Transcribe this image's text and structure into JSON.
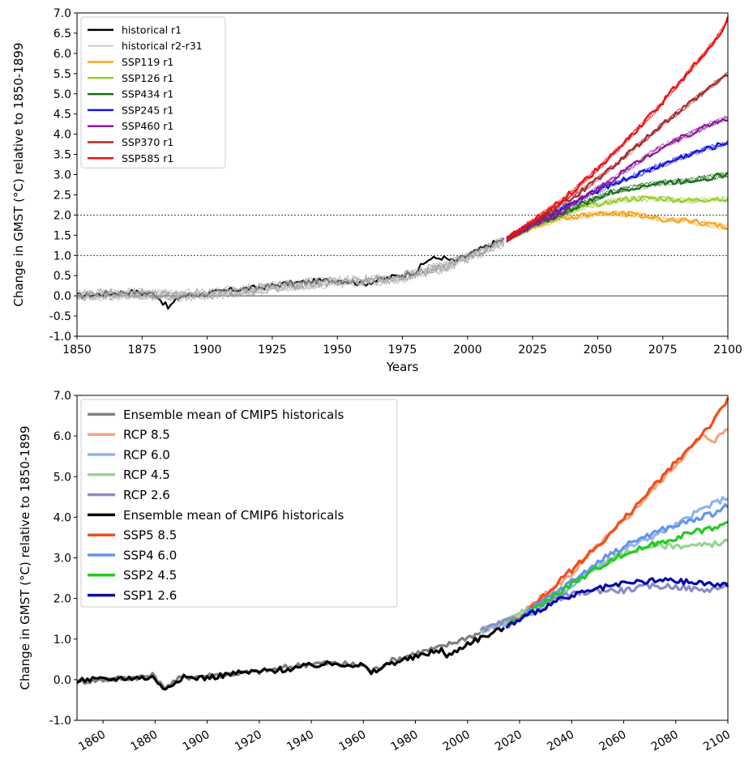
{
  "chart_data": [
    {
      "type": "line",
      "xlabel": "Years",
      "ylabel": "Change in GMST (°C) relative to 1850-1899",
      "xlim": [
        1850,
        2100
      ],
      "ylim": [
        -1.0,
        7.0
      ],
      "x_ticks": [
        "1850",
        "1875",
        "1900",
        "1925",
        "1950",
        "1975",
        "2000",
        "2025",
        "2050",
        "2075",
        "2100"
      ],
      "y_ticks": [
        "-1.0",
        "-0.5",
        "0.0",
        "0.5",
        "1.0",
        "1.5",
        "2.0",
        "2.5",
        "3.0",
        "3.5",
        "4.0",
        "4.5",
        "5.0",
        "5.5",
        "6.0",
        "6.5",
        "7.0"
      ],
      "reference_lines": [
        {
          "y": 0.0,
          "style": "solid"
        },
        {
          "y": 1.0,
          "style": "dotted"
        },
        {
          "y": 2.0,
          "style": "dotted"
        }
      ],
      "grid": false,
      "legend_position": "top-left",
      "series": [
        {
          "name": "historical r1",
          "color": "#000000",
          "x": [
            1850,
            1860,
            1870,
            1880,
            1885,
            1890,
            1900,
            1910,
            1920,
            1930,
            1940,
            1950,
            1960,
            1970,
            1980,
            1985,
            1990,
            1995,
            2000,
            2005,
            2010,
            2014
          ],
          "y": [
            0.0,
            0.05,
            0.1,
            0.05,
            -0.3,
            0.0,
            0.05,
            0.15,
            0.2,
            0.3,
            0.35,
            0.4,
            0.3,
            0.45,
            0.6,
            0.9,
            0.95,
            0.85,
            1.0,
            1.15,
            1.3,
            1.4
          ]
        },
        {
          "name": "historical r2-r31",
          "color": "#999999",
          "x": [
            1850,
            1870,
            1890,
            1910,
            1930,
            1950,
            1970,
            1990,
            2000,
            2014
          ],
          "y": [
            0.0,
            0.05,
            0.0,
            0.1,
            0.25,
            0.35,
            0.4,
            0.7,
            0.95,
            1.35
          ]
        },
        {
          "name": "SSP119 r1",
          "color": "#f5a623",
          "x": [
            2015,
            2025,
            2035,
            2045,
            2055,
            2065,
            2075,
            2085,
            2095,
            2100
          ],
          "y": [
            1.4,
            1.7,
            1.9,
            2.0,
            2.05,
            2.0,
            1.9,
            1.85,
            1.75,
            1.7
          ]
        },
        {
          "name": "SSP126 r1",
          "color": "#9acd32",
          "x": [
            2015,
            2025,
            2035,
            2045,
            2055,
            2065,
            2075,
            2085,
            2095,
            2100
          ],
          "y": [
            1.4,
            1.7,
            1.95,
            2.2,
            2.35,
            2.4,
            2.4,
            2.35,
            2.4,
            2.4
          ]
        },
        {
          "name": "SSP434 r1",
          "color": "#1a6b1a",
          "x": [
            2015,
            2025,
            2035,
            2045,
            2055,
            2065,
            2075,
            2085,
            2095,
            2100
          ],
          "y": [
            1.4,
            1.75,
            2.0,
            2.3,
            2.55,
            2.7,
            2.8,
            2.85,
            2.95,
            3.0
          ]
        },
        {
          "name": "SSP245 r1",
          "color": "#1515e0",
          "x": [
            2015,
            2025,
            2035,
            2045,
            2055,
            2065,
            2075,
            2085,
            2095,
            2100
          ],
          "y": [
            1.4,
            1.8,
            2.1,
            2.45,
            2.75,
            3.0,
            3.25,
            3.5,
            3.7,
            3.8
          ]
        },
        {
          "name": "SSP460 r1",
          "color": "#8b1a9b",
          "x": [
            2015,
            2025,
            2035,
            2045,
            2055,
            2065,
            2075,
            2085,
            2095,
            2100
          ],
          "y": [
            1.4,
            1.75,
            2.05,
            2.45,
            2.85,
            3.3,
            3.7,
            4.0,
            4.3,
            4.4
          ]
        },
        {
          "name": "SSP370 r1",
          "color": "#a52a2a",
          "x": [
            2015,
            2025,
            2035,
            2045,
            2055,
            2065,
            2075,
            2085,
            2095,
            2100
          ],
          "y": [
            1.4,
            1.8,
            2.2,
            2.65,
            3.15,
            3.7,
            4.25,
            4.75,
            5.25,
            5.5
          ]
        },
        {
          "name": "SSP585 r1",
          "color": "#ee1111",
          "x": [
            2015,
            2025,
            2035,
            2045,
            2055,
            2065,
            2075,
            2085,
            2095,
            2100
          ],
          "y": [
            1.4,
            1.85,
            2.3,
            2.85,
            3.45,
            4.1,
            4.8,
            5.55,
            6.3,
            6.85
          ]
        }
      ]
    },
    {
      "type": "line",
      "xlabel": "",
      "ylabel": "Change in GMST (°C) relative to 1850-1899",
      "xlim": [
        1850,
        2100
      ],
      "ylim": [
        -1.0,
        7.0
      ],
      "x_ticks": [
        "1860",
        "1880",
        "1900",
        "1920",
        "1940",
        "1960",
        "1980",
        "2000",
        "2020",
        "2040",
        "2060",
        "2080",
        "2100"
      ],
      "y_ticks": [
        "-1.0",
        "0.0",
        "1.0",
        "2.0",
        "3.0",
        "4.0",
        "5.0",
        "6.0",
        "7.0"
      ],
      "grid": false,
      "legend_position": "top-left",
      "series": [
        {
          "name": "Ensemble mean of CMIP5 historicals",
          "color": "#808080",
          "x": [
            1850,
            1860,
            1870,
            1880,
            1883,
            1890,
            1900,
            1910,
            1920,
            1930,
            1940,
            1950,
            1960,
            1963,
            1970,
            1980,
            1990,
            2000,
            2005
          ],
          "y": [
            -0.05,
            0.0,
            0.05,
            0.1,
            -0.2,
            0.05,
            0.1,
            0.15,
            0.2,
            0.3,
            0.4,
            0.4,
            0.35,
            0.2,
            0.45,
            0.65,
            0.8,
            1.05,
            1.15
          ]
        },
        {
          "name": "RCP 8.5",
          "color": "#f4a582",
          "x": [
            2005,
            2020,
            2030,
            2040,
            2050,
            2060,
            2070,
            2080,
            2090,
            2095,
            2100
          ],
          "y": [
            1.2,
            1.6,
            2.1,
            2.6,
            3.3,
            3.9,
            4.6,
            5.3,
            6.0,
            5.9,
            6.2
          ]
        },
        {
          "name": "RCP 6.0",
          "color": "#92b4f2",
          "x": [
            2005,
            2020,
            2030,
            2040,
            2050,
            2060,
            2070,
            2080,
            2090,
            2100
          ],
          "y": [
            1.2,
            1.5,
            1.8,
            2.3,
            2.8,
            3.2,
            3.5,
            3.8,
            4.2,
            4.5
          ]
        },
        {
          "name": "RCP 4.5",
          "color": "#98d490",
          "x": [
            2005,
            2020,
            2030,
            2040,
            2050,
            2060,
            2070,
            2080,
            2090,
            2100
          ],
          "y": [
            1.2,
            1.6,
            2.0,
            2.4,
            2.8,
            3.1,
            3.3,
            3.3,
            3.3,
            3.4
          ]
        },
        {
          "name": "RCP 2.6",
          "color": "#8c8cc8",
          "x": [
            2005,
            2020,
            2030,
            2040,
            2050,
            2060,
            2070,
            2080,
            2090,
            2100
          ],
          "y": [
            1.2,
            1.55,
            1.9,
            2.1,
            2.2,
            2.2,
            2.3,
            2.3,
            2.2,
            2.3
          ]
        },
        {
          "name": "Ensemble mean of CMIP6 historicals",
          "color": "#000000",
          "x": [
            1850,
            1860,
            1870,
            1880,
            1883,
            1890,
            1900,
            1910,
            1920,
            1930,
            1940,
            1950,
            1960,
            1963,
            1970,
            1980,
            1990,
            1992,
            2000,
            2010,
            2014
          ],
          "y": [
            0.0,
            0.0,
            0.05,
            0.05,
            -0.25,
            0.05,
            0.05,
            0.15,
            0.2,
            0.25,
            0.35,
            0.4,
            0.35,
            0.15,
            0.4,
            0.55,
            0.75,
            0.55,
            0.9,
            1.15,
            1.3
          ]
        },
        {
          "name": "SSP5 8.5",
          "color": "#f04e1a",
          "x": [
            2015,
            2025,
            2035,
            2045,
            2055,
            2065,
            2075,
            2085,
            2095,
            2100
          ],
          "y": [
            1.3,
            1.8,
            2.4,
            3.0,
            3.6,
            4.3,
            5.0,
            5.7,
            6.4,
            6.9
          ]
        },
        {
          "name": "SSP4 6.0",
          "color": "#6495ed",
          "x": [
            2015,
            2025,
            2035,
            2045,
            2055,
            2065,
            2075,
            2085,
            2095,
            2100
          ],
          "y": [
            1.3,
            1.75,
            2.2,
            2.65,
            3.1,
            3.45,
            3.7,
            3.9,
            4.1,
            4.3
          ]
        },
        {
          "name": "SSP2 4.5",
          "color": "#22cc22",
          "x": [
            2015,
            2025,
            2035,
            2045,
            2055,
            2065,
            2075,
            2085,
            2095,
            2100
          ],
          "y": [
            1.3,
            1.7,
            2.15,
            2.55,
            2.95,
            3.2,
            3.4,
            3.6,
            3.75,
            3.85
          ]
        },
        {
          "name": "SSP1 2.6",
          "color": "#0a0aa8",
          "x": [
            2015,
            2025,
            2035,
            2045,
            2055,
            2065,
            2075,
            2085,
            2095,
            2100
          ],
          "y": [
            1.3,
            1.65,
            1.95,
            2.15,
            2.3,
            2.4,
            2.45,
            2.4,
            2.35,
            2.3
          ]
        }
      ]
    }
  ]
}
